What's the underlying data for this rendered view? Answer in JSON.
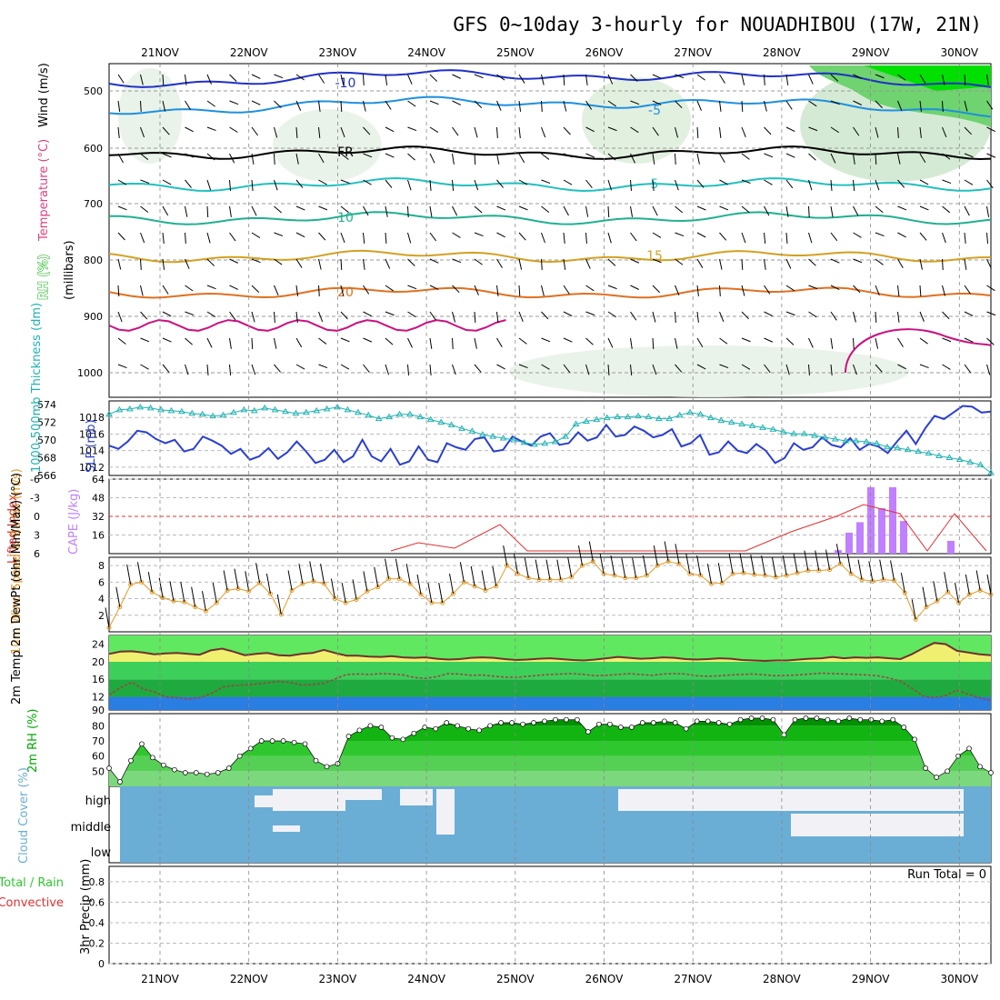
{
  "title": "GFS 0~10day 3-hourly for NOUADHIBOU (17W, 21N)",
  "dates": [
    "21NOV",
    "22NOV",
    "23NOV",
    "24NOV",
    "25NOV",
    "26NOV",
    "27NOV",
    "28NOV",
    "29NOV",
    "30NOV"
  ],
  "colors": {
    "rh_dark": "#00c000",
    "rh_mid": "#a6a6a6",
    "temp": "#8a2be2",
    "wind": "#1e90ff",
    "slp": "#2a3fd0",
    "thick": "#20b2b2",
    "cape": "#c080ff",
    "lifted": "#e03030",
    "wind10": "#e39b2a",
    "cloud": "#6aaed6",
    "precip": "#e03030"
  },
  "chart_data": [
    {
      "panel": "upper-air",
      "type": "contour",
      "ylabels": {
        "rh": "RH (%)",
        "temp": "Temperature (°C)",
        "wind": "Wind (m/s)",
        "mb": "(millibars)"
      },
      "yticks": [
        "500",
        "600",
        "700",
        "800",
        "900",
        "1000"
      ],
      "contours": [
        {
          "label": "-10",
          "level": -10
        },
        {
          "label": "-5",
          "level": -5
        },
        {
          "label": "FR",
          "level": 0
        },
        {
          "label": "5",
          "level": 5
        },
        {
          "label": "10",
          "level": 10
        },
        {
          "label": "15",
          "level": 15
        },
        {
          "label": "20",
          "level": 20
        }
      ],
      "rh_labels": [
        "10",
        "30",
        "50"
      ]
    },
    {
      "panel": "slp-thickness",
      "type": "line",
      "ylabel_left": "1000-500mb Thickness (dm)",
      "ylabel_right": "SLP (mb)",
      "yticks_thick": [
        "566",
        "568",
        "570",
        "572",
        "574"
      ],
      "yticks_slp": [
        "1012",
        "1014",
        "1016",
        "1018"
      ],
      "series": [
        {
          "name": "SLP",
          "values": [
            1014.6,
            1014.2,
            1015.1,
            1016.4,
            1016.2,
            1015.4,
            1014.9,
            1015.3,
            1013.9,
            1014.2,
            1015.7,
            1015.2,
            1014.6,
            1013.6,
            1014.2,
            1012.9,
            1013.3,
            1014.3,
            1013.0,
            1013.8,
            1015.1,
            1013.9,
            1012.5,
            1012.9,
            1014.1,
            1012.6,
            1013.3,
            1015.3,
            1013.3,
            1012.7,
            1014.2,
            1012.3,
            1012.7,
            1014.5,
            1012.9,
            1012.6,
            1014.9,
            1014.4,
            1014.1,
            1015.4,
            1015.6,
            1013.9,
            1014.1,
            1015.7,
            1015.1,
            1014.6,
            1015.7,
            1016.1,
            1014.7,
            1014.9,
            1016.2,
            1015.2,
            1015.6,
            1017.1,
            1015.7,
            1015.9,
            1016.9,
            1016.4,
            1015.6,
            1015.9,
            1016.6,
            1014.5,
            1014.9,
            1015.9,
            1013.5,
            1013.8,
            1015.1,
            1014.0,
            1013.7,
            1014.8,
            1014.0,
            1012.5,
            1013.1,
            1014.9,
            1014.1,
            1014.4,
            1015.6,
            1014.7,
            1014.4,
            1015.5,
            1014.1,
            1014.8,
            1014.5,
            1013.7,
            1015.1,
            1016.4,
            1014.8,
            1016.7,
            1018.2,
            1017.8,
            1018.6,
            1019.4,
            1019.3,
            1018.6,
            1018.7
          ]
        },
        {
          "name": "Thickness",
          "values": [
            572.9,
            573.4,
            573.5,
            573.7,
            573.6,
            573.4,
            573.3,
            573.2,
            573.0,
            572.9,
            572.7,
            572.8,
            573.1,
            573.4,
            573.3,
            573.6,
            573.4,
            573.2,
            573.0,
            573.1,
            573.3,
            573.5,
            573.7,
            573.4,
            573.1,
            572.8,
            572.4,
            572.6,
            572.9,
            572.9,
            572.6,
            572.3,
            572.0,
            571.7,
            571.3,
            571.0,
            570.6,
            570.4,
            570.2,
            570.0,
            569.7,
            569.5,
            569.6,
            569.8,
            570.4,
            571.8,
            572.1,
            572.3,
            572.5,
            572.6,
            572.6,
            572.7,
            572.6,
            572.4,
            572.4,
            572.8,
            573.1,
            572.9,
            572.5,
            572.2,
            572.0,
            571.8,
            571.6,
            571.4,
            571.2,
            570.9,
            570.7,
            570.7,
            570.5,
            570.3,
            570.1,
            569.9,
            569.9,
            569.8,
            569.6,
            569.2,
            569.1,
            568.9,
            568.7,
            568.5,
            568.2,
            568.0,
            567.8,
            567.5,
            567.2,
            566.3
          ]
        }
      ]
    },
    {
      "panel": "cape-li",
      "type": "bar+line",
      "ylabel_left": "Lifted Index",
      "ylabel_right": "CAPE (J/kg)",
      "yticks_li": [
        "-6",
        "-3",
        "0",
        "3",
        "6"
      ],
      "yticks_cape": [
        "16",
        "32",
        "48",
        "64"
      ],
      "cape_bars": [
        {
          "x": "28NOV 18z",
          "value": 3
        },
        {
          "x": "28NOV 21z",
          "value": 18
        },
        {
          "x": "29NOV 00z",
          "value": 27
        },
        {
          "x": "29NOV 03z",
          "value": 57
        },
        {
          "x": "29NOV 06z",
          "value": 39
        },
        {
          "x": "29NOV 09z",
          "value": 57
        },
        {
          "x": "29NOV 12z",
          "value": 28
        },
        {
          "x": "29NOV 21z",
          "value": 11
        }
      ]
    },
    {
      "panel": "wind10m",
      "type": "line",
      "ylabel": "10m Wind Speed & Barbs (m/s)",
      "yticks": [
        "2",
        "4",
        "6",
        "8"
      ],
      "values": [
        0.5,
        3.0,
        5.7,
        6.0,
        4.8,
        4.1,
        3.7,
        3.6,
        3.0,
        2.5,
        3.5,
        5.0,
        5.2,
        4.9,
        5.9,
        4.6,
        2.1,
        5.0,
        5.8,
        6.1,
        5.8,
        4.0,
        3.5,
        3.9,
        4.9,
        5.4,
        6.4,
        6.4,
        5.8,
        4.5,
        3.5,
        3.5,
        4.6,
        6.0,
        5.5,
        5.0,
        5.5,
        8.0,
        7.0,
        6.5,
        6.3,
        6.3,
        6.3,
        6.6,
        8.0,
        8.5,
        7.0,
        6.8,
        6.5,
        6.5,
        6.8,
        8.0,
        8.5,
        8.2,
        7.0,
        6.8,
        5.8,
        5.9,
        7.0,
        7.1,
        6.9,
        6.8,
        6.6,
        6.8,
        7.1,
        7.4,
        7.4,
        7.5,
        8.2,
        7.0,
        6.3,
        6.1,
        6.3,
        6.2,
        4.7,
        1.5,
        3.0,
        3.7,
        4.8,
        3.5,
        4.5,
        5.0,
        4.5
      ]
    },
    {
      "panel": "temp2m",
      "type": "area+line",
      "ylabel": "2m Temp 2m DewPt (6hr Min/Max) (°C)",
      "yticks": [
        "12",
        "16",
        "20",
        "24"
      ],
      "bottom_tick": "90",
      "temp": [
        21.8,
        22.3,
        22.4,
        22.1,
        21.7,
        21.9,
        22.0,
        21.8,
        21.6,
        22.6,
        23.0,
        22.3,
        21.5,
        21.8,
        22.0,
        21.5,
        21.4,
        21.8,
        22.0,
        22.7,
        22.0,
        21.4,
        21.4,
        21.2,
        21.1,
        21.3,
        21.0,
        20.9,
        21.0,
        20.7,
        20.5,
        20.6,
        20.9,
        21.0,
        20.9,
        20.6,
        20.4,
        20.5,
        20.7,
        20.8,
        20.6,
        20.4,
        20.3,
        20.5,
        20.8,
        21.1,
        20.9,
        20.7,
        20.8,
        21.0,
        20.9,
        20.6,
        20.5,
        20.6,
        20.8,
        20.7,
        20.4,
        20.3,
        20.2,
        20.3,
        20.3,
        20.5,
        20.7,
        20.8,
        21.1,
        20.8,
        21.0,
        20.9,
        21.0,
        20.8,
        20.6,
        21.7,
        23.1,
        24.3,
        24.0,
        22.5,
        22.1,
        21.7,
        21.5
      ],
      "dewpt": [
        12.4,
        14.1,
        15.3,
        13.8,
        13.1,
        12.0,
        11.8,
        11.5,
        11.8,
        12.7,
        14.2,
        14.6,
        14.7,
        14.9,
        15.2,
        15.5,
        15.3,
        14.7,
        14.8,
        15.1,
        16.1,
        17.1,
        17.2,
        17.1,
        17.3,
        17.2,
        17.0,
        16.4,
        16.2,
        16.6,
        17.3,
        17.2,
        16.9,
        17.0,
        16.7,
        16.5,
        16.4,
        16.7,
        16.9,
        17.1,
        17.2,
        17.3,
        17.1,
        16.8,
        16.9,
        17.1,
        17.3,
        17.1,
        16.9,
        17.2,
        17.3,
        17.2,
        16.8,
        16.7,
        16.8,
        17.0,
        17.1,
        17.2,
        17.0,
        16.8,
        16.9,
        17.0,
        17.2,
        17.4,
        17.3,
        17.2,
        17.1,
        17.0,
        16.8,
        16.3,
        15.6,
        14.0,
        12.2,
        11.8,
        12.3,
        13.5,
        12.6,
        11.8,
        11.2
      ]
    },
    {
      "panel": "rh2m",
      "type": "area",
      "ylabel": "2m RH (%)",
      "yticks": [
        "50",
        "60",
        "70",
        "80"
      ],
      "values": [
        52,
        43,
        57,
        68,
        59,
        54,
        51,
        49,
        49,
        48,
        49,
        52,
        60,
        65,
        70,
        70,
        70,
        69,
        68,
        57,
        53,
        55,
        73,
        77,
        80,
        79,
        72,
        71,
        75,
        79,
        78,
        82,
        80,
        78,
        77,
        80,
        82,
        82,
        81,
        82,
        83,
        84,
        84,
        84,
        76,
        81,
        81,
        79,
        79,
        82,
        82,
        83,
        82,
        78,
        83,
        83,
        82,
        81,
        84,
        85,
        85,
        84,
        74,
        84,
        85,
        85,
        84,
        83,
        85,
        84,
        84,
        83,
        84,
        79,
        71,
        52,
        46,
        50,
        60,
        65,
        53,
        49
      ]
    },
    {
      "panel": "cloud",
      "type": "heatmap",
      "ylabel": "Cloud Cover (%)",
      "levels": [
        "high",
        "middle",
        "low"
      ]
    },
    {
      "panel": "precip",
      "type": "bar",
      "ylabel": "3hr Precip (mm)",
      "legend": [
        "Total / Rain",
        "Convective"
      ],
      "yticks": [
        "0",
        "0.2",
        "0.4",
        "0.6",
        "0.8"
      ],
      "run_total": "Run Total = 0",
      "values": []
    }
  ]
}
